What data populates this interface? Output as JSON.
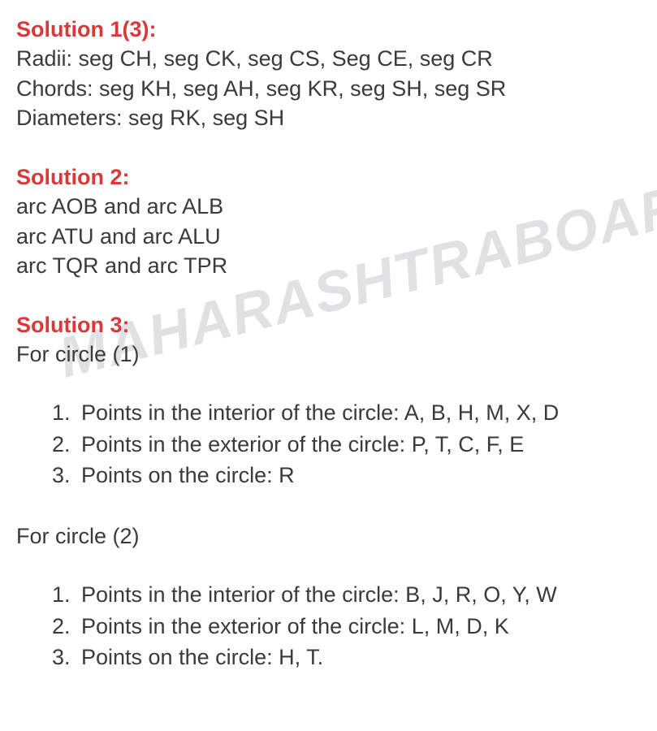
{
  "watermark": "MAHARASHTRABOARDBO",
  "solution1": {
    "heading": "Solution 1(3):",
    "radii": "Radii: seg CH, seg CK, seg CS, Seg CE, seg CR",
    "chords": "Chords: seg KH, seg AH, seg KR, seg SH, seg SR",
    "diameters": "Diameters: seg RK, seg SH"
  },
  "solution2": {
    "heading": "Solution 2:",
    "line1": "arc AOB and arc ALB",
    "line2": "arc ATU and arc ALU",
    "line3": "arc TQR and arc TPR"
  },
  "solution3": {
    "heading": "Solution 3:",
    "circle1": {
      "label": "For circle (1)",
      "item1": "Points in the interior of the circle: A, B, H, M, X, D",
      "item2": "Points in the exterior of the circle: P, T, C, F, E",
      "item3": "Points on the circle: R"
    },
    "circle2": {
      "label": "For circle (2)",
      "item1": "Points in the interior of the circle: B, J, R, O, Y, W",
      "item2": "Points in the exterior of the circle: L, M, D, K",
      "item3": "Points on the circle: H, T."
    }
  }
}
